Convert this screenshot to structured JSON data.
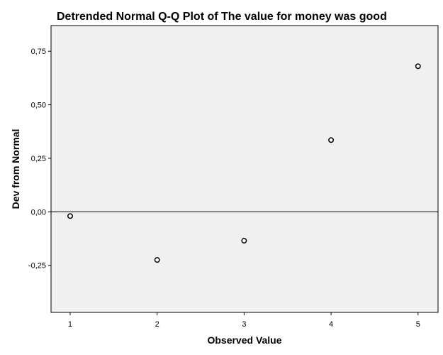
{
  "chart_data": {
    "type": "scatter",
    "title": "Detrended Normal Q-Q Plot of The value for money was good",
    "xlabel": "Observed Value",
    "ylabel": "Dev from Normal",
    "xlim": [
      0.78,
      5.23
    ],
    "ylim": [
      -0.47,
      0.87
    ],
    "x_ticks": [
      1,
      2,
      3,
      4,
      5
    ],
    "x_tick_labels": [
      "1",
      "2",
      "3",
      "4",
      "5"
    ],
    "y_ticks": [
      -0.25,
      0.0,
      0.25,
      0.5,
      0.75
    ],
    "y_tick_labels": [
      "-0,25",
      "0,00",
      "0,25",
      "0,50",
      "0,75"
    ],
    "reference_line_y": 0,
    "grid": false,
    "legend": "none",
    "points": [
      {
        "x": 1,
        "y": -0.02
      },
      {
        "x": 2,
        "y": -0.225
      },
      {
        "x": 3,
        "y": -0.135
      },
      {
        "x": 4,
        "y": 0.335
      },
      {
        "x": 5,
        "y": 0.68
      }
    ],
    "colors": {
      "plot_background": "#f0f0f0",
      "frame": "#000000",
      "marker_stroke": "#000000",
      "marker_fill": "#ffffff"
    }
  }
}
